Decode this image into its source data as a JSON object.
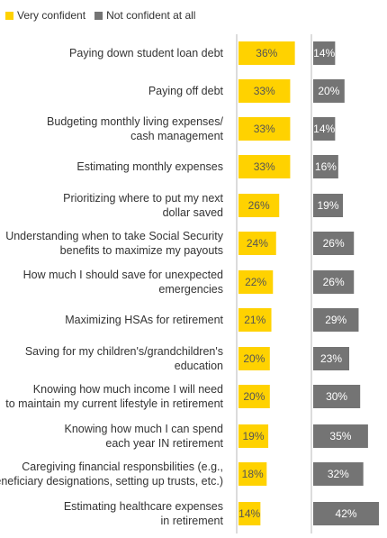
{
  "chart_data": {
    "type": "bar",
    "orientation": "horizontal",
    "categories": [
      [
        "Paying down student loan debt"
      ],
      [
        "Paying off debt"
      ],
      [
        "Budgeting monthly living expenses/",
        "cash management"
      ],
      [
        "Estimating monthly expenses"
      ],
      [
        "Prioritizing where to put my next",
        "dollar saved"
      ],
      [
        "Understanding when to take Social Security",
        "benefits to maximize my payouts"
      ],
      [
        "How much I should save for unexpected",
        "emergencies"
      ],
      [
        "Maximizing HSAs for retirement"
      ],
      [
        "Saving for my children's/grandchildren's",
        "education"
      ],
      [
        "Knowing how much income I will need",
        "to maintain my current lifestyle in retirement"
      ],
      [
        "Knowing how much I can spend",
        "each year IN retirement"
      ],
      [
        "Caregiving financial responsbilities (e.g.,",
        "beneficiary designations, setting up trusts, etc.)"
      ],
      [
        "Estimating healthcare expenses",
        "in retirement"
      ]
    ],
    "series": [
      {
        "name": "Very confident",
        "color": "#FFD200",
        "values": [
          36,
          33,
          33,
          33,
          26,
          24,
          22,
          21,
          20,
          20,
          19,
          18,
          14
        ],
        "labels": [
          "36%",
          "33%",
          "33%",
          "33%",
          "26%",
          "24%",
          "22%",
          "21%",
          "20%",
          "20%",
          "19%",
          "18%",
          "14%"
        ]
      },
      {
        "name": "Not confident at all",
        "color": "#747474",
        "values": [
          14,
          20,
          14,
          16,
          19,
          26,
          26,
          29,
          23,
          30,
          35,
          32,
          42
        ],
        "labels": [
          "14%",
          "20%",
          "14%",
          "16%",
          "19%",
          "26%",
          "26%",
          "29%",
          "23%",
          "30%",
          "35%",
          "32%",
          "42%"
        ]
      }
    ],
    "legend_position": "top-left",
    "grid": false
  }
}
